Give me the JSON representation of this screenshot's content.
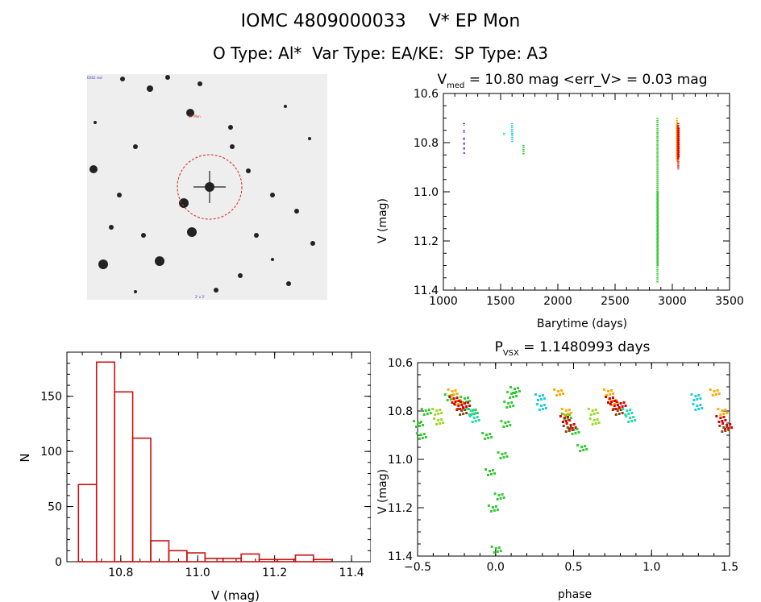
{
  "header": {
    "title_line1": "IOMC 4809000033    V* EP Mon",
    "title_line2": "O Type: Al*  Var Type: EA/KE:  SP Type: A3"
  },
  "sky_image": {
    "label_top_left": "DSS2 red",
    "label_bottom": "2' x 2'",
    "target_label": "EP Mon"
  },
  "colors": {
    "purple": "#6a0dad",
    "cyan": "#22ccdd",
    "green": "#33cc33",
    "lightgreen": "#99dd22",
    "orange": "#ffaa00",
    "red": "#dd0000",
    "brown": "#8b4513",
    "teal": "#22ddaa",
    "hist": "#cc1111"
  },
  "chart_data": [
    {
      "id": "lightcurve",
      "type": "scatter",
      "title_main": "V",
      "title_sub": "med",
      "title_rest": " = 10.80 mag <err_V> = 0.03 mag",
      "xlabel": "Barytime (days)",
      "ylabel": "V (mag)",
      "xlim": [
        1000,
        3500
      ],
      "ylim": [
        10.6,
        11.4
      ],
      "y_inverted": true,
      "xticks": [
        1000,
        1500,
        2000,
        2500,
        3000,
        3500
      ],
      "yticks": [
        10.6,
        10.8,
        11.0,
        11.2,
        11.4
      ],
      "ytick_labels": [
        "10.6",
        "10.8",
        "11.0",
        "11.2",
        "11.4"
      ],
      "series": [
        {
          "name": "purple",
          "color": "purple",
          "x": [
            1180,
            1180,
            1180,
            1181,
            1181,
            1182
          ],
          "ymin": [
            10.72,
            10.75,
            10.78,
            10.8,
            10.82,
            10.84
          ],
          "ymax": [
            10.73,
            10.76,
            10.79,
            10.81,
            10.83,
            10.84
          ]
        },
        {
          "name": "cyan",
          "color": "cyan",
          "x": [
            1530,
            1600,
            1602
          ],
          "ymin": [
            10.76,
            10.72,
            10.76
          ],
          "ymax": [
            10.77,
            10.77,
            10.8
          ]
        },
        {
          "name": "green",
          "color": "green",
          "x": [
            1700,
            2870,
            2871,
            2872
          ],
          "ymin": [
            10.81,
            10.7,
            10.75,
            11.0
          ],
          "ymax": [
            10.85,
            11.37,
            11.2,
            11.3
          ]
        },
        {
          "name": "orange",
          "color": "orange",
          "x": [
            3040,
            3045
          ],
          "ymin": [
            10.7,
            10.72
          ],
          "ymax": [
            10.88,
            10.86
          ]
        },
        {
          "name": "red",
          "color": "red",
          "x": [
            3048,
            3052,
            3056
          ],
          "ymin": [
            10.73,
            10.72,
            10.74
          ],
          "ymax": [
            10.87,
            10.91,
            10.86
          ]
        }
      ]
    },
    {
      "id": "histogram",
      "type": "bar",
      "xlabel": "V (mag)",
      "ylabel": "N",
      "xlim": [
        10.66,
        11.45
      ],
      "ylim": [
        0,
        190
      ],
      "xticks": [
        10.8,
        11.0,
        11.2,
        11.4
      ],
      "xtick_labels": [
        "10.8",
        "11.0",
        "11.2",
        "11.4"
      ],
      "yticks": [
        0,
        50,
        100,
        150
      ],
      "ytick_labels": [
        "0",
        "50",
        "100",
        "150"
      ],
      "bin_edges": [
        10.69,
        10.737,
        10.784,
        10.831,
        10.878,
        10.925,
        10.972,
        11.019,
        11.066,
        11.113,
        11.16,
        11.207,
        11.254,
        11.301,
        11.348,
        11.395
      ],
      "values": [
        70,
        181,
        154,
        112,
        19,
        10,
        8,
        3,
        3,
        7,
        2,
        2,
        6,
        2,
        0
      ]
    },
    {
      "id": "phased",
      "type": "scatter",
      "title_main": "P",
      "title_sub": "VSX",
      "title_rest": " = 1.1480993 days",
      "xlabel": "phase",
      "ylabel": "V (mag)",
      "xlim": [
        -0.5,
        1.5
      ],
      "ylim": [
        10.6,
        11.4
      ],
      "y_inverted": true,
      "xticks": [
        -0.5,
        0.0,
        0.5,
        1.0,
        1.5
      ],
      "xtick_labels": [
        "−0.5",
        "0.0",
        "0.5",
        "1.0",
        "1.5"
      ],
      "yticks": [
        10.6,
        10.8,
        11.0,
        11.2,
        11.4
      ],
      "ytick_labels": [
        "10.6",
        "10.8",
        "11.0",
        "11.2",
        "11.4"
      ],
      "series": [
        {
          "name": "green-eclipse",
          "color": "green",
          "x": [
            0.0,
            0.02,
            0.04,
            0.06,
            0.08,
            0.1,
            0.12,
            -0.02,
            -0.04,
            -0.06
          ],
          "y": [
            11.37,
            11.15,
            10.98,
            10.85,
            10.77,
            10.73,
            10.71,
            11.2,
            11.05,
            10.9
          ]
        },
        {
          "name": "green-max",
          "color": "green",
          "x": [
            -0.3,
            -0.25,
            -0.2,
            -0.15,
            0.45,
            0.5,
            0.55,
            -0.5,
            -0.48,
            -0.45
          ],
          "y": [
            10.74,
            10.76,
            10.75,
            10.8,
            10.82,
            10.88,
            10.95,
            10.85,
            10.9,
            10.8
          ]
        },
        {
          "name": "lightgreen",
          "color": "lightgreen",
          "x": [
            -0.38,
            -0.37,
            0.62,
            0.63
          ],
          "y": [
            10.8,
            10.84,
            10.8,
            10.84
          ]
        },
        {
          "name": "cyan",
          "color": "cyan",
          "x": [
            0.28,
            0.29,
            1.28,
            1.29
          ],
          "y": [
            10.74,
            10.78,
            10.74,
            10.78
          ]
        },
        {
          "name": "orange",
          "color": "orange",
          "x": [
            -0.28,
            -0.25,
            0.4,
            0.45,
            0.72,
            0.75,
            1.4,
            1.45
          ],
          "y": [
            10.72,
            10.76,
            10.72,
            10.8,
            10.72,
            10.76,
            10.72,
            10.8
          ]
        },
        {
          "name": "red",
          "color": "red",
          "x": [
            -0.27,
            -0.24,
            -0.2,
            0.44,
            0.48,
            0.73,
            0.76,
            0.8,
            1.44,
            1.48
          ],
          "y": [
            10.75,
            10.78,
            10.77,
            10.83,
            10.86,
            10.75,
            10.78,
            10.77,
            10.83,
            10.86
          ]
        },
        {
          "name": "brown",
          "color": "brown",
          "x": [
            -0.22,
            0.46,
            0.78,
            1.46
          ],
          "y": [
            10.8,
            10.87,
            10.8,
            10.87
          ]
        },
        {
          "name": "teal",
          "color": "teal",
          "x": [
            -0.16,
            -0.14,
            0.84,
            0.86
          ],
          "y": [
            10.8,
            10.83,
            10.8,
            10.83
          ]
        }
      ]
    }
  ]
}
